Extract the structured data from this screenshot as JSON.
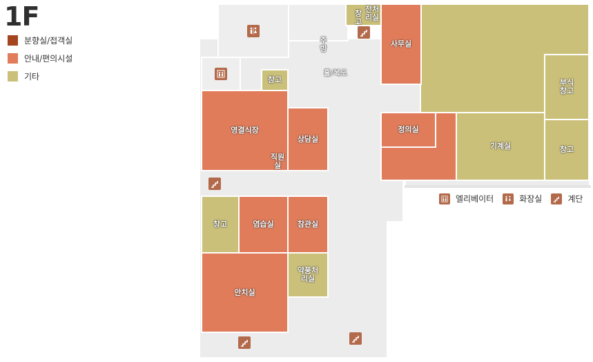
{
  "floor": "1F",
  "legend": [
    {
      "label": "분향실/접객실",
      "color": "#a4451f"
    },
    {
      "label": "안내/편의시설",
      "color": "#e07c5a"
    },
    {
      "label": "기타",
      "color": "#cbc07a"
    }
  ],
  "rooms": {
    "hall": "홀/복도",
    "kitchen": "주방",
    "storage_top": "창고",
    "electric": "전처리실",
    "storage_small": "창고",
    "office": "사무실",
    "reception_storage": "부식창고",
    "storage_right": "창고",
    "machine": "기계실",
    "memorial_hall": "영결식장",
    "staff_room": "직원실",
    "consult": "상담실",
    "justice": "정의실",
    "storage_left": "창고",
    "rehearsal": "염습실",
    "viewing": "참관실",
    "chemical": "약품처리실",
    "mortuary": "안치실"
  },
  "bottom_legend": [
    {
      "label": "엘리베이터",
      "icon": "elevator-icon"
    },
    {
      "label": "화장실",
      "icon": "restroom-icon"
    },
    {
      "label": "계단",
      "icon": "stairs-icon"
    }
  ]
}
